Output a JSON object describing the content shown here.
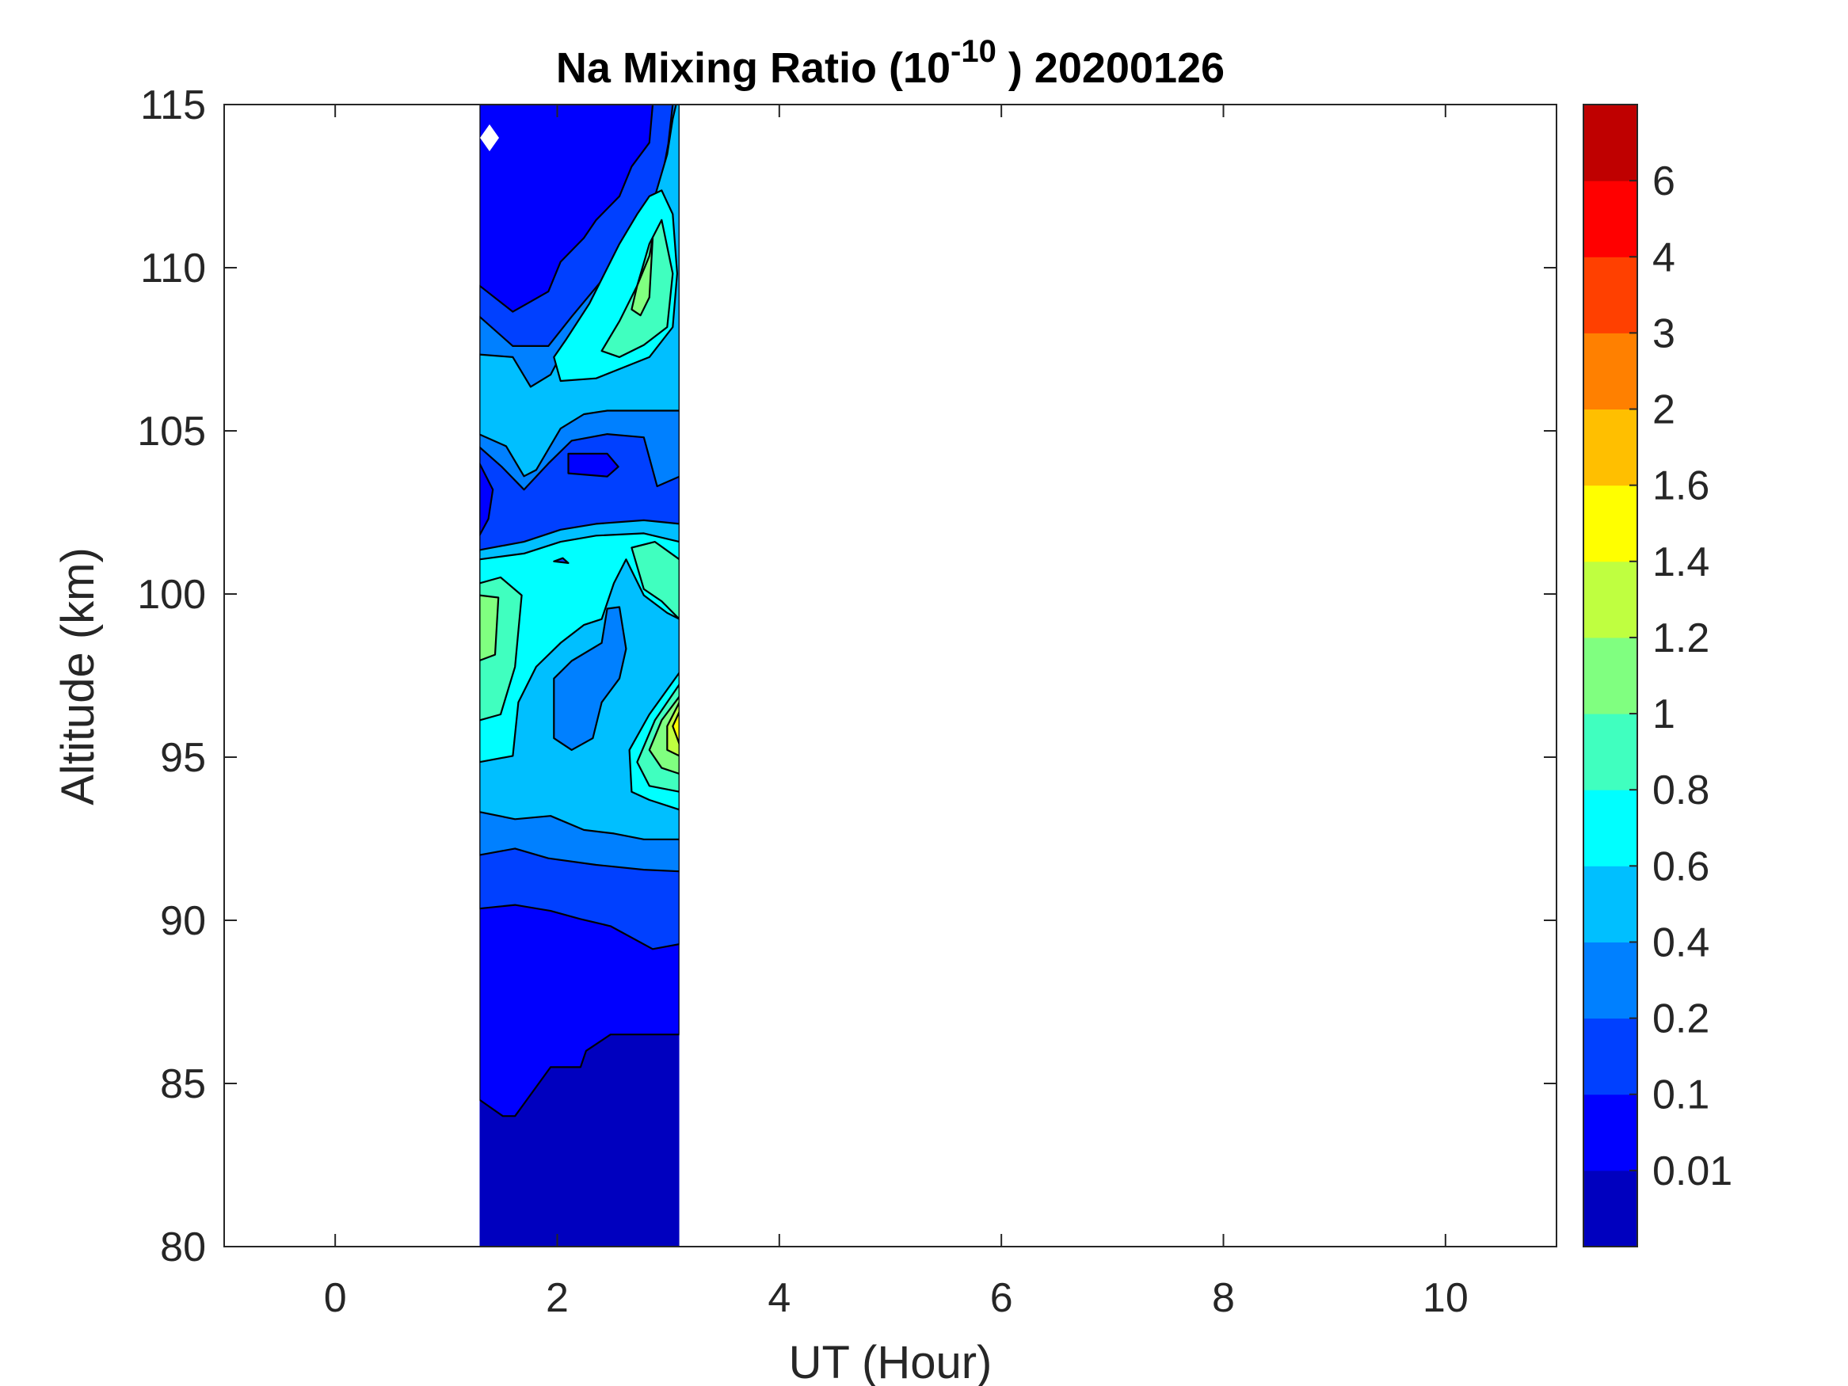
{
  "chart_data": {
    "type": "heatmap",
    "subtype": "filled-contour",
    "title": {
      "prefix": "Na Mixing Ratio (10",
      "exponent": "-10",
      "suffix": " ) 20200126"
    },
    "xlabel": "UT (Hour)",
    "ylabel": "Altitude (km)",
    "xlim": [
      -1,
      11
    ],
    "ylim": [
      80,
      115
    ],
    "xticks": [
      0,
      2,
      4,
      6,
      8,
      10
    ],
    "xtick_labels": [
      "0",
      "2",
      "4",
      "6",
      "8",
      "10"
    ],
    "yticks": [
      80,
      85,
      90,
      95,
      100,
      105,
      110,
      115
    ],
    "ytick_labels": [
      "80",
      "85",
      "90",
      "95",
      "100",
      "105",
      "110",
      "115"
    ],
    "data_extent_hours": [
      1.3,
      3.1
    ],
    "colorbar": {
      "levels": [
        0,
        0.01,
        0.1,
        0.2,
        0.4,
        0.6,
        0.8,
        1,
        1.2,
        1.4,
        1.6,
        2,
        3,
        4,
        6,
        7
      ],
      "tick_labels": [
        "0.01",
        "0.1",
        "0.2",
        "0.4",
        "0.6",
        "0.8",
        "1",
        "1.2",
        "1.4",
        "1.6",
        "2",
        "3",
        "4",
        "6"
      ],
      "colors": [
        "#0000bf",
        "#0000ff",
        "#0040ff",
        "#0080ff",
        "#00bfff",
        "#00ffff",
        "#40ffbf",
        "#80ff80",
        "#bfff40",
        "#ffff00",
        "#ffbf00",
        "#ff8000",
        "#ff4000",
        "#ff0000",
        "#bf0000"
      ]
    },
    "marker": {
      "shape": "diamond",
      "color": "#ffffff",
      "hour": 1.39,
      "km": 113.98
    },
    "contour_regions": [
      {
        "level": 0,
        "points": [
          [
            1.3,
            115
          ],
          [
            3.1,
            115
          ],
          [
            3.1,
            80
          ],
          [
            1.3,
            80
          ]
        ]
      },
      {
        "level": 1,
        "points": [
          [
            1.3,
            115
          ],
          [
            3.1,
            115
          ],
          [
            3.1,
            86.5
          ],
          [
            2.48,
            86.5
          ],
          [
            2.26,
            86.0
          ],
          [
            2.21,
            85.5
          ],
          [
            1.94,
            85.5
          ],
          [
            1.62,
            84.0
          ],
          [
            1.51,
            84.0
          ],
          [
            1.3,
            84.5
          ]
        ]
      },
      {
        "level": 2,
        "points": [
          [
            1.3,
            109.45
          ],
          [
            1.6,
            108.65
          ],
          [
            1.92,
            109.27
          ],
          [
            2.03,
            110.18
          ],
          [
            2.24,
            110.91
          ],
          [
            2.35,
            111.46
          ],
          [
            2.56,
            112.19
          ],
          [
            2.67,
            113.1
          ],
          [
            2.83,
            113.83
          ],
          [
            2.86,
            115
          ],
          [
            3.1,
            115
          ],
          [
            3.1,
            89.27
          ],
          [
            2.86,
            89.12
          ],
          [
            2.48,
            89.82
          ],
          [
            2.21,
            90.04
          ],
          [
            1.94,
            90.29
          ],
          [
            1.62,
            90.47
          ],
          [
            1.3,
            90.36
          ]
        ]
      },
      {
        "level": 3,
        "points": [
          [
            1.3,
            108.5
          ],
          [
            1.6,
            107.6
          ],
          [
            1.92,
            107.6
          ],
          [
            2.13,
            108.5
          ],
          [
            2.35,
            109.4
          ],
          [
            2.62,
            110.5
          ],
          [
            2.83,
            111.6
          ],
          [
            2.94,
            112.7
          ],
          [
            3.0,
            113.8
          ],
          [
            3.04,
            115
          ],
          [
            3.1,
            115
          ],
          [
            3.1,
            91.5
          ],
          [
            2.78,
            91.55
          ],
          [
            2.35,
            91.7
          ],
          [
            1.92,
            91.9
          ],
          [
            1.62,
            92.2
          ],
          [
            1.3,
            92.0
          ]
        ]
      },
      {
        "level": 4,
        "points": [
          [
            1.3,
            107.34
          ],
          [
            1.6,
            107.26
          ],
          [
            1.76,
            106.35
          ],
          [
            1.94,
            106.72
          ],
          [
            2.08,
            107.63
          ],
          [
            2.29,
            108.54
          ],
          [
            2.51,
            109.64
          ],
          [
            2.72,
            110.91
          ],
          [
            2.88,
            112.19
          ],
          [
            2.99,
            113.47
          ],
          [
            3.04,
            114.56
          ],
          [
            3.07,
            115
          ],
          [
            3.1,
            115
          ],
          [
            3.1,
            105.62
          ],
          [
            2.78,
            105.62
          ],
          [
            2.45,
            105.62
          ],
          [
            2.24,
            105.51
          ],
          [
            2.03,
            105.07
          ],
          [
            1.81,
            103.8
          ],
          [
            1.7,
            103.61
          ],
          [
            1.54,
            104.53
          ],
          [
            1.3,
            104.89
          ]
        ]
      },
      {
        "level": 2,
        "points": [
          [
            1.3,
            104.5
          ],
          [
            1.5,
            103.9
          ],
          [
            1.7,
            103.2
          ],
          [
            1.92,
            104.0
          ],
          [
            2.13,
            104.7
          ],
          [
            2.45,
            104.9
          ],
          [
            2.78,
            104.8
          ],
          [
            2.9,
            103.3
          ],
          [
            3.1,
            103.6
          ],
          [
            3.1,
            101.9
          ],
          [
            2.78,
            102.1
          ],
          [
            2.35,
            102.0
          ],
          [
            1.92,
            101.6
          ],
          [
            1.6,
            101.2
          ],
          [
            1.3,
            101.3
          ]
        ]
      },
      {
        "level": 1,
        "points": [
          [
            1.3,
            104.0
          ],
          [
            1.42,
            103.2
          ],
          [
            1.38,
            102.3
          ],
          [
            1.3,
            101.8
          ]
        ]
      },
      {
        "level": 1,
        "points": [
          [
            2.1,
            104.3
          ],
          [
            2.45,
            104.3
          ],
          [
            2.55,
            103.9
          ],
          [
            2.45,
            103.6
          ],
          [
            2.1,
            103.7
          ]
        ]
      },
      {
        "level": 4,
        "points": [
          [
            1.3,
            101.35
          ],
          [
            1.7,
            101.6
          ],
          [
            2.03,
            101.97
          ],
          [
            2.35,
            102.15
          ],
          [
            2.78,
            102.26
          ],
          [
            3.1,
            102.15
          ],
          [
            3.1,
            92.48
          ],
          [
            2.78,
            92.48
          ],
          [
            2.51,
            92.66
          ],
          [
            2.24,
            92.77
          ],
          [
            1.94,
            93.2
          ],
          [
            1.62,
            93.1
          ],
          [
            1.3,
            93.32
          ]
        ]
      },
      {
        "level": 5,
        "points": [
          [
            1.3,
            101.06
          ],
          [
            1.7,
            101.24
          ],
          [
            2.03,
            101.6
          ],
          [
            2.35,
            101.79
          ],
          [
            2.78,
            101.86
          ],
          [
            3.1,
            101.6
          ],
          [
            3.1,
            99.23
          ],
          [
            2.99,
            99.42
          ],
          [
            2.78,
            99.96
          ],
          [
            2.62,
            101.06
          ],
          [
            2.51,
            100.33
          ],
          [
            2.4,
            99.23
          ],
          [
            2.24,
            99.05
          ],
          [
            2.03,
            98.5
          ],
          [
            1.81,
            97.77
          ],
          [
            1.65,
            96.68
          ],
          [
            1.6,
            95.04
          ],
          [
            1.3,
            94.85
          ]
        ]
      },
      {
        "level": 3,
        "points": [
          [
            1.97,
            95.58
          ],
          [
            2.13,
            95.22
          ],
          [
            2.32,
            95.58
          ],
          [
            2.4,
            96.68
          ],
          [
            2.56,
            97.41
          ],
          [
            2.62,
            98.32
          ],
          [
            2.56,
            99.6
          ],
          [
            2.45,
            99.55
          ],
          [
            2.4,
            98.5
          ],
          [
            2.13,
            97.95
          ],
          [
            1.97,
            97.41
          ]
        ]
      },
      {
        "level": 6,
        "points": [
          [
            1.3,
            100.33
          ],
          [
            1.49,
            100.51
          ],
          [
            1.68,
            99.96
          ],
          [
            1.62,
            97.77
          ],
          [
            1.49,
            96.31
          ],
          [
            1.3,
            96.13
          ]
        ]
      },
      {
        "level": 7,
        "points": [
          [
            1.3,
            99.96
          ],
          [
            1.47,
            99.89
          ],
          [
            1.44,
            98.14
          ],
          [
            1.3,
            97.96
          ]
        ]
      },
      {
        "level": 6,
        "points": [
          [
            2.67,
            101.42
          ],
          [
            2.88,
            101.6
          ],
          [
            3.1,
            101.06
          ],
          [
            3.1,
            99.23
          ],
          [
            2.94,
            99.78
          ],
          [
            2.78,
            100.15
          ]
        ]
      },
      {
        "level": 5,
        "points": [
          [
            3.1,
            97.59
          ],
          [
            2.83,
            96.31
          ],
          [
            2.65,
            95.22
          ],
          [
            2.67,
            93.94
          ],
          [
            2.83,
            93.69
          ],
          [
            3.1,
            93.39
          ]
        ]
      },
      {
        "level": 6,
        "points": [
          [
            3.1,
            97.23
          ],
          [
            2.88,
            96.13
          ],
          [
            2.72,
            94.85
          ],
          [
            2.83,
            94.12
          ],
          [
            3.1,
            93.94
          ]
        ]
      },
      {
        "level": 7,
        "points": [
          [
            3.1,
            96.86
          ],
          [
            2.94,
            96.13
          ],
          [
            2.83,
            95.22
          ],
          [
            2.94,
            94.67
          ],
          [
            3.1,
            94.49
          ]
        ]
      },
      {
        "level": 8,
        "points": [
          [
            3.1,
            96.68
          ],
          [
            2.99,
            95.95
          ],
          [
            2.99,
            95.22
          ],
          [
            3.1,
            95.04
          ]
        ]
      },
      {
        "level": 9,
        "points": [
          [
            3.1,
            96.39
          ],
          [
            3.04,
            95.95
          ],
          [
            3.1,
            95.4
          ]
        ]
      },
      {
        "level": 5,
        "points": [
          [
            1.97,
            107.26
          ],
          [
            2.08,
            107.8
          ],
          [
            2.29,
            108.9
          ],
          [
            2.56,
            110.73
          ],
          [
            2.72,
            111.64
          ],
          [
            2.83,
            112.19
          ],
          [
            2.94,
            112.37
          ],
          [
            3.04,
            111.64
          ],
          [
            3.08,
            109.82
          ],
          [
            3.04,
            108.18
          ],
          [
            2.83,
            107.26
          ],
          [
            2.35,
            106.61
          ],
          [
            2.03,
            106.53
          ]
        ]
      },
      {
        "level": 6,
        "points": [
          [
            2.4,
            107.45
          ],
          [
            2.56,
            108.36
          ],
          [
            2.72,
            109.45
          ],
          [
            2.83,
            110.73
          ],
          [
            2.94,
            111.46
          ],
          [
            3.04,
            109.82
          ],
          [
            2.99,
            108.18
          ],
          [
            2.78,
            107.63
          ],
          [
            2.56,
            107.26
          ]
        ]
      },
      {
        "level": 7,
        "points": [
          [
            2.67,
            108.72
          ],
          [
            2.72,
            109.45
          ],
          [
            2.83,
            110.36
          ],
          [
            2.86,
            110.91
          ],
          [
            2.83,
            109.09
          ],
          [
            2.75,
            108.54
          ]
        ]
      },
      {
        "level": 2,
        "points": [
          [
            1.97,
            101.0
          ],
          [
            2.05,
            101.1
          ],
          [
            2.1,
            100.95
          ]
        ]
      }
    ]
  }
}
